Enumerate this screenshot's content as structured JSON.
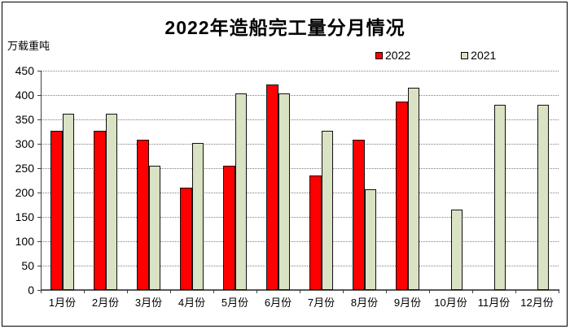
{
  "chart_data": {
    "type": "bar",
    "title": "2022年造船完工量分月情况",
    "unit_label": "万载重吨",
    "categories": [
      "1月份",
      "2月份",
      "3月份",
      "4月份",
      "5月份",
      "6月份",
      "7月份",
      "8月份",
      "9月份",
      "10月份",
      "11月份",
      "12月份"
    ],
    "series": [
      {
        "name": "2022",
        "color": "#FF0000",
        "values": [
          327,
          327,
          308,
          210,
          255,
          422,
          235,
          308,
          387,
          null,
          null,
          null
        ]
      },
      {
        "name": "2021",
        "color": "#D9E2C3",
        "values": [
          361,
          361,
          255,
          302,
          404,
          404,
          326,
          207,
          415,
          165,
          380,
          380
        ]
      }
    ],
    "ylabel": "",
    "xlabel": "",
    "ylim": [
      0,
      450
    ],
    "ytick_step": 50,
    "yticks": [
      "0",
      "50",
      "100",
      "150",
      "200",
      "250",
      "300",
      "350",
      "400",
      "450"
    ],
    "grid": true,
    "legend_position": "top-right",
    "colors": {
      "axis": "#404040",
      "gridline": "#7f7f7f",
      "bar_border": "#111111",
      "frame_border": "#000000",
      "background": "#ffffff"
    }
  }
}
